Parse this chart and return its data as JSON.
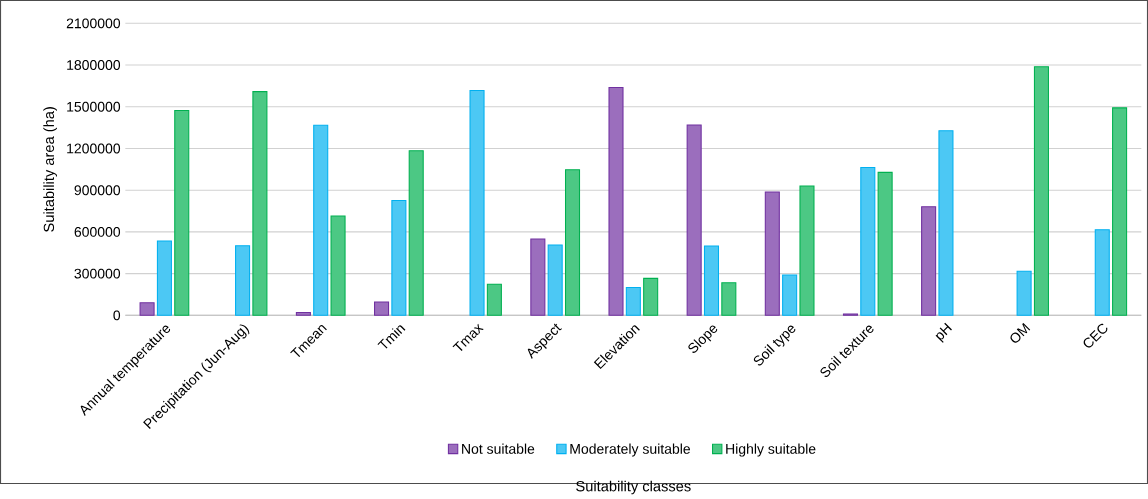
{
  "chart_data": {
    "type": "bar",
    "xlabel": "Suitability classes",
    "ylabel": "Suitability area (ha)",
    "categories": [
      "Annual temperature",
      "Precipitation (Jun-Aug)",
      "Tmean",
      "Tmin",
      "Tmax",
      "Aspect",
      "Elevation",
      "Slope",
      "Soil type",
      "Soil texture",
      "pH",
      "OM",
      "CEC"
    ],
    "series": [
      {
        "name": "Not suitable",
        "color": "#7030a0",
        "values": [
          90000,
          null,
          20000,
          96000,
          null,
          549000,
          1638000,
          1369000,
          887000,
          10000,
          781000,
          null,
          null
        ]
      },
      {
        "name": "Moderately suitable",
        "color": "#00b0f0",
        "values": [
          535000,
          501000,
          1367000,
          826000,
          1617000,
          506000,
          200000,
          498000,
          290000,
          1063000,
          1327000,
          317000,
          615000
        ]
      },
      {
        "name": "Highly suitable",
        "color": "#00b050",
        "values": [
          1473000,
          1609000,
          714000,
          1183000,
          224000,
          1047000,
          266000,
          234000,
          930000,
          1028000,
          null,
          1788000,
          1492000
        ]
      }
    ],
    "ylim": [
      0,
      2100000
    ],
    "yticks": [
      0,
      300000,
      600000,
      900000,
      1200000,
      1500000,
      1800000,
      2100000
    ],
    "grid": "y",
    "legend": "bottom"
  }
}
